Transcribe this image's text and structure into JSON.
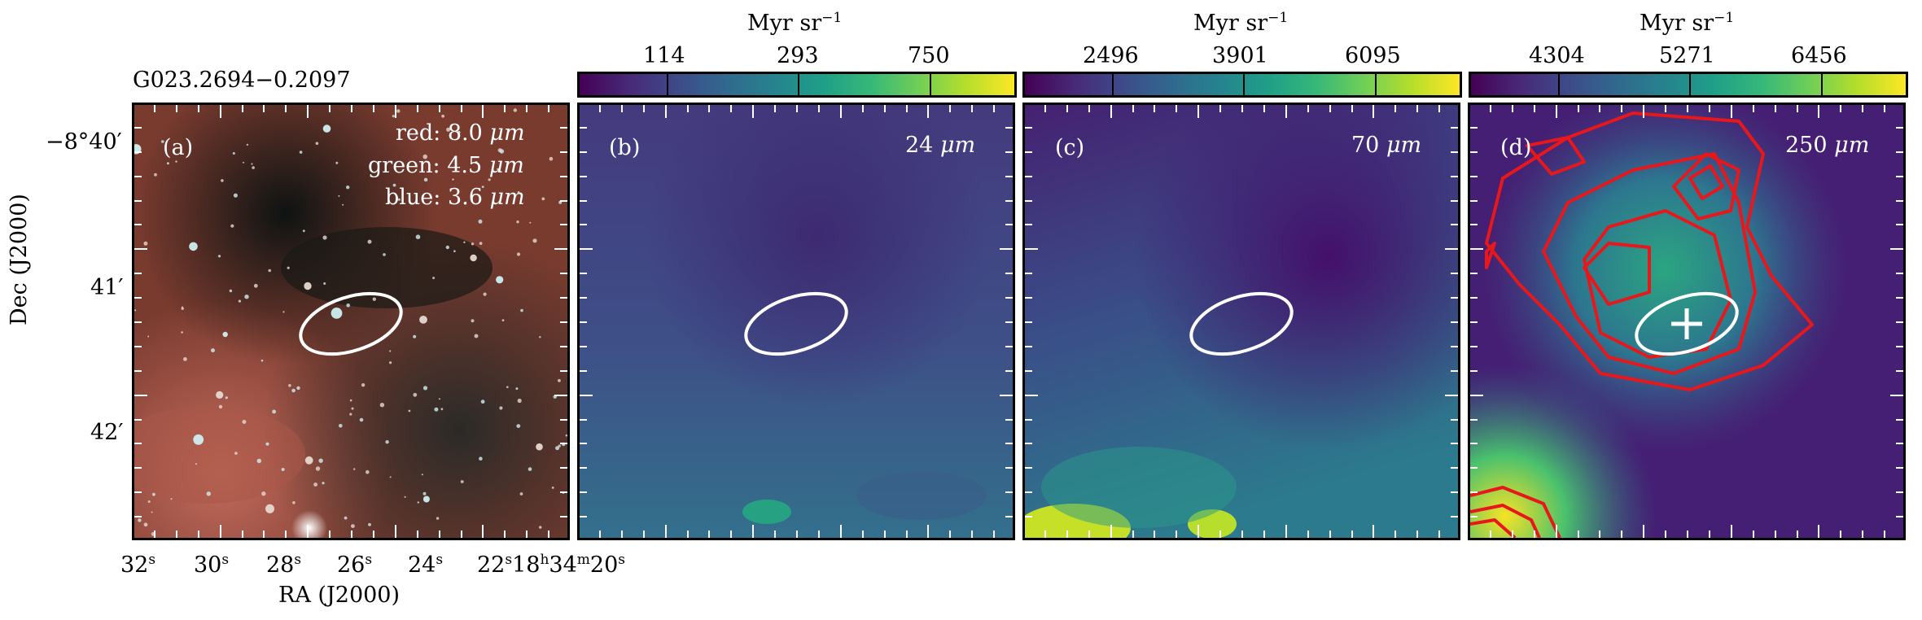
{
  "source_name": "G023.2694−0.2097",
  "colorbars": [
    {
      "unit": "Myr sr",
      "unit_exp": "−1",
      "ticks": [
        "114",
        "293",
        "750"
      ]
    },
    {
      "unit": "Myr sr",
      "unit_exp": "−1",
      "ticks": [
        "2496",
        "3901",
        "6095"
      ]
    },
    {
      "unit": "Myr sr",
      "unit_exp": "−1",
      "ticks": [
        "4304",
        "5271",
        "6456"
      ]
    }
  ],
  "panels": [
    {
      "label": "(a)",
      "rgb_legend": {
        "red": "red: 8.0",
        "green": "green: 4.5",
        "blue": "blue: 3.6",
        "unit": "μm"
      }
    },
    {
      "label": "(b)",
      "wavelength": "24",
      "unit": "μm"
    },
    {
      "label": "(c)",
      "wavelength": "70",
      "unit": "μm"
    },
    {
      "label": "(d)",
      "wavelength": "250",
      "unit": "μm"
    }
  ],
  "axes": {
    "ylabel": "Dec (J2000)",
    "xlabel": "RA (J2000)",
    "dec_ticks": {
      "first_deg": "−8°40′",
      "second": "41′",
      "third": "42′"
    },
    "ra_ticks": [
      {
        "v": "32",
        "s": "s"
      },
      {
        "v": "30",
        "s": "s"
      },
      {
        "v": "28",
        "s": "s"
      },
      {
        "v": "26",
        "s": "s"
      },
      {
        "v": "24",
        "s": "s"
      }
    ],
    "ra_last": {
      "a": "22",
      "s1": "s",
      "b": "18",
      "h": "h",
      "c": "34",
      "m": "m",
      "d": "20",
      "s2": "s"
    }
  },
  "colors": {
    "ellipse": "#ffffff",
    "contours": "#e8171c",
    "frame": "#000000"
  }
}
